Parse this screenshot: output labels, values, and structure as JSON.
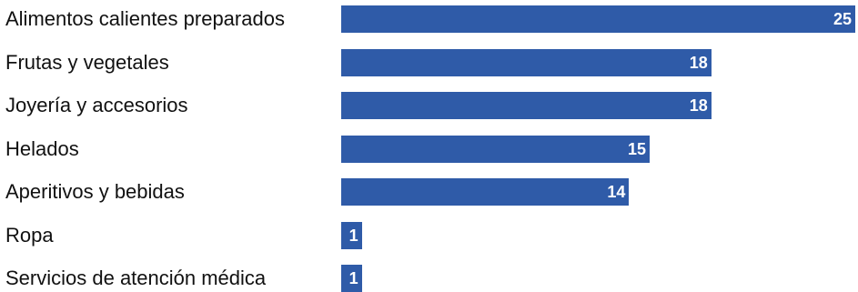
{
  "chart_data": {
    "type": "bar",
    "orientation": "horizontal",
    "categories": [
      "Alimentos calientes preparados",
      "Frutas y vegetales",
      "Joyería y accesorios",
      "Helados",
      "Aperitivos y bebidas",
      "Ropa",
      "Servicios de atención médica"
    ],
    "values": [
      25,
      18,
      18,
      15,
      14,
      1,
      1
    ],
    "data_labels": [
      "25",
      "18",
      "18",
      "15",
      "14",
      "1",
      "1"
    ],
    "xlim": [
      0,
      25
    ],
    "grid": false,
    "legend": "none",
    "bar_color": "#2f5ba8",
    "label_color": "#ffffff",
    "text_color": "#111111"
  }
}
